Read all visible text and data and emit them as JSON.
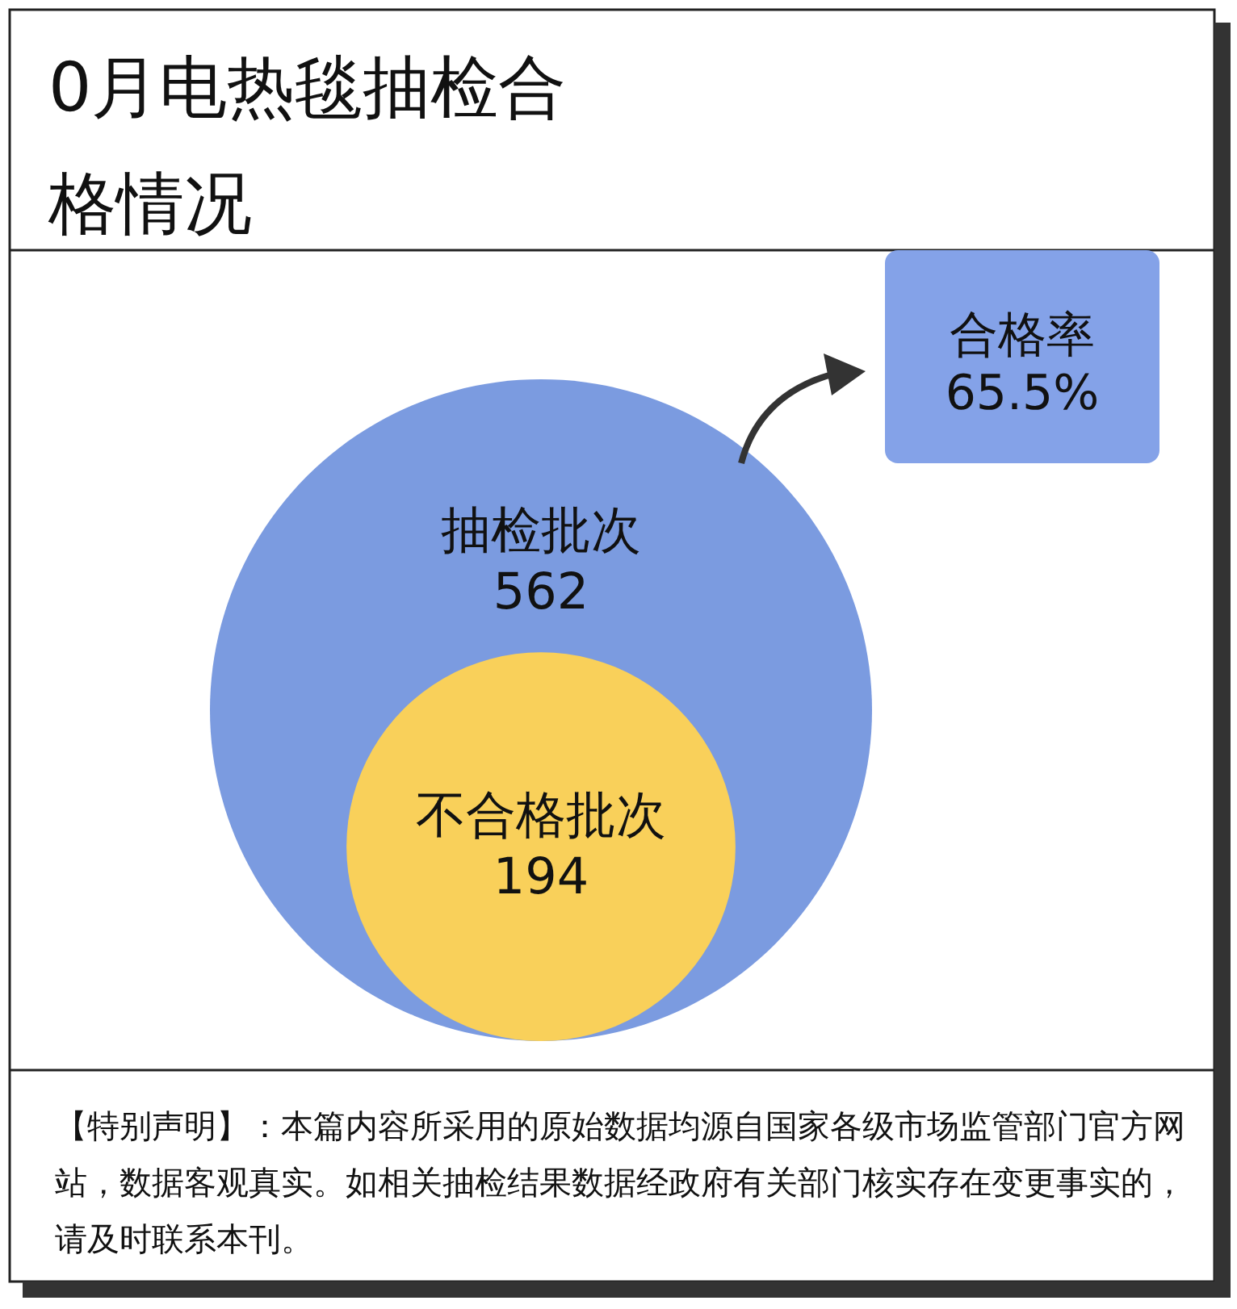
{
  "chart_data": {
    "type": "other",
    "title": "0月电热毯抽检合格情况",
    "categories": [
      "抽检批次",
      "不合格批次"
    ],
    "values": [
      562,
      194
    ],
    "colors": [
      "#7b9be0",
      "#f9d05a"
    ],
    "data_labels": true,
    "annotations": [
      "合格率\n65.5%",
      "【特别声明】：本篇内容所采用的原始数据均源自国家各级市场监管部门官方网站，数据客观真实。如相关抽检结果数据经政府有关部门核实存在变更事实的，请及时联系本刊。"
    ]
  }
}
